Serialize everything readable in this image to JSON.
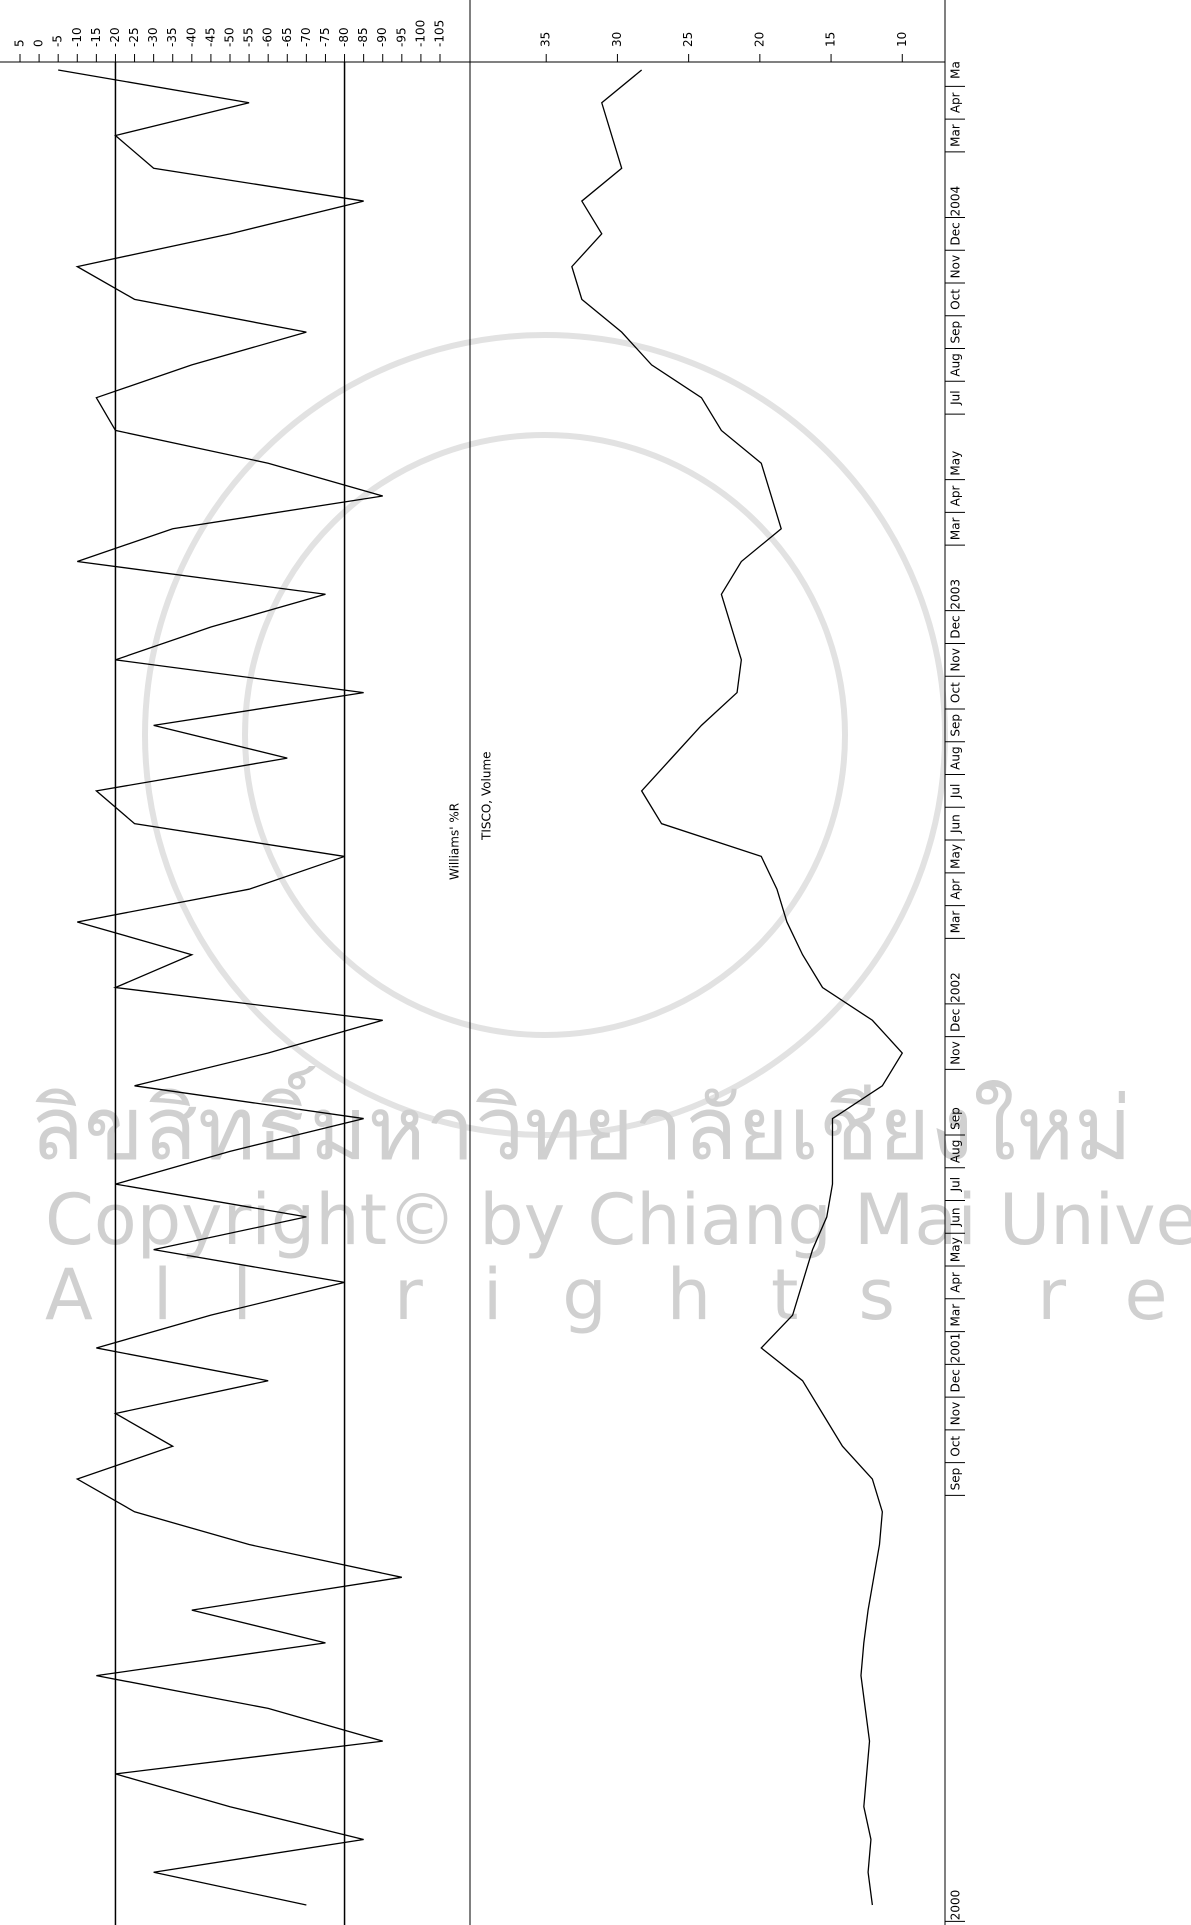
{
  "chart_data": [
    {
      "type": "line",
      "title": "Williams' %R",
      "values": [
        -70,
        -30,
        -85,
        -50,
        -20,
        -90,
        -60,
        -15,
        -75,
        -40,
        -95,
        -55,
        -25,
        -10,
        -35,
        -20,
        -60,
        -15,
        -45,
        -80,
        -30,
        -70,
        -20,
        -50,
        -85,
        -25,
        -60,
        -90,
        -20,
        -40,
        -10,
        -55,
        -80,
        -25,
        -15,
        -65,
        -30,
        -85,
        -20,
        -45,
        -75,
        -10,
        -35,
        -90,
        -60,
        -20,
        -15,
        -40,
        -70,
        -25,
        -10,
        -50,
        -85,
        -30,
        -20,
        -55,
        -5
      ],
      "color": "#000000",
      "ylim": [
        -105,
        5
      ],
      "yticks": [
        5,
        0,
        -5,
        -10,
        -15,
        -20,
        -25,
        -30,
        -35,
        -40,
        -45,
        -50,
        -55,
        -60,
        -65,
        -70,
        -75,
        -80,
        -85,
        -90,
        -95,
        -100,
        -105
      ],
      "reference_lines": [
        -20,
        -80
      ]
    },
    {
      "type": "line",
      "title": "TISCO, Volume",
      "categories": [
        "2000",
        null,
        null,
        null,
        null,
        null,
        null,
        null,
        null,
        null,
        null,
        null,
        null,
        "Sep",
        "Oct",
        "Nov",
        "Dec",
        "2001",
        "Mar",
        "Apr",
        "May",
        "Jun",
        "Jul",
        "Aug",
        "Sep",
        null,
        "Nov",
        "Dec",
        "2002",
        null,
        "Mar",
        "Apr",
        "May",
        "Jun",
        "Jul",
        "Aug",
        "Sep",
        "Oct",
        "Nov",
        "Dec",
        "2003",
        null,
        "Mar",
        "Apr",
        "May",
        null,
        "Jul",
        "Aug",
        "Sep",
        "Oct",
        "Nov",
        "Dec",
        "2004",
        null,
        "Mar",
        "Apr",
        "Ma"
      ],
      "values": [
        12.1,
        12.4,
        12.2,
        12.7,
        12.5,
        12.3,
        12.6,
        12.9,
        12.7,
        12.4,
        12.0,
        11.6,
        11.4,
        12.1,
        14.2,
        15.6,
        17,
        19.9,
        17.7,
        17,
        16.3,
        15.3,
        14.9,
        14.9,
        14.9,
        11.4,
        10,
        12.1,
        15.6,
        17,
        18.1,
        18.8,
        19.9,
        26.9,
        28.3,
        26.2,
        24.1,
        21.6,
        21.3,
        22,
        22.7,
        21.3,
        18.5,
        19.2,
        19.9,
        22.7,
        24.1,
        27.6,
        29.7,
        32.5,
        33.2,
        31.1,
        32.5,
        29.7,
        30.4,
        31.1,
        28.3
      ],
      "color": "#000000",
      "ylim": [
        7,
        40
      ],
      "yticks": [
        35,
        30,
        25,
        20,
        15,
        10
      ]
    }
  ],
  "watermark": {
    "thai": "ลิขสิทธิ์มหาวิทยาลัยเชียงใหม่",
    "copyright": "Copyright© by Chiang Mai University",
    "rights": "All rights reserved"
  }
}
